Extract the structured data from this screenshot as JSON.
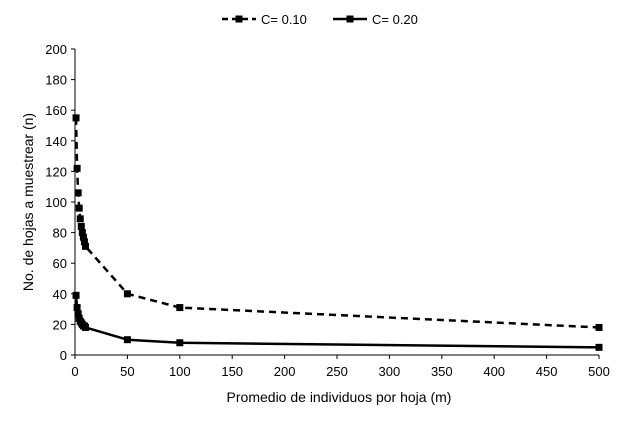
{
  "chart_data": {
    "type": "line",
    "title": "",
    "xlabel": "Promedio de individuos  por hoja (m)",
    "ylabel": "No. de hojas a muestrear (n)",
    "xlim": [
      0,
      500
    ],
    "ylim": [
      0,
      200
    ],
    "xticks": [
      0,
      50,
      100,
      150,
      200,
      250,
      300,
      350,
      400,
      450,
      500
    ],
    "yticks": [
      0,
      20,
      40,
      60,
      80,
      100,
      120,
      140,
      160,
      180,
      200
    ],
    "legend_position": "top-center",
    "grid": false,
    "series": [
      {
        "name": "C= 0.10",
        "style": "dashed",
        "color": "#000000",
        "marker": "square",
        "points": [
          [
            1,
            155
          ],
          [
            2,
            122
          ],
          [
            3,
            106
          ],
          [
            4,
            96
          ],
          [
            5,
            89
          ],
          [
            6,
            84
          ],
          [
            7,
            80
          ],
          [
            8,
            77
          ],
          [
            9,
            74
          ],
          [
            10,
            71
          ],
          [
            50,
            40
          ],
          [
            100,
            31
          ],
          [
            500,
            18
          ]
        ]
      },
      {
        "name": "C= 0.20",
        "style": "solid",
        "color": "#000000",
        "marker": "square",
        "points": [
          [
            1,
            39
          ],
          [
            2,
            31
          ],
          [
            3,
            27
          ],
          [
            4,
            24
          ],
          [
            5,
            22
          ],
          [
            6,
            21
          ],
          [
            7,
            20
          ],
          [
            8,
            19
          ],
          [
            9,
            19
          ],
          [
            10,
            18
          ],
          [
            50,
            10
          ],
          [
            100,
            8
          ],
          [
            500,
            5
          ]
        ]
      }
    ]
  }
}
